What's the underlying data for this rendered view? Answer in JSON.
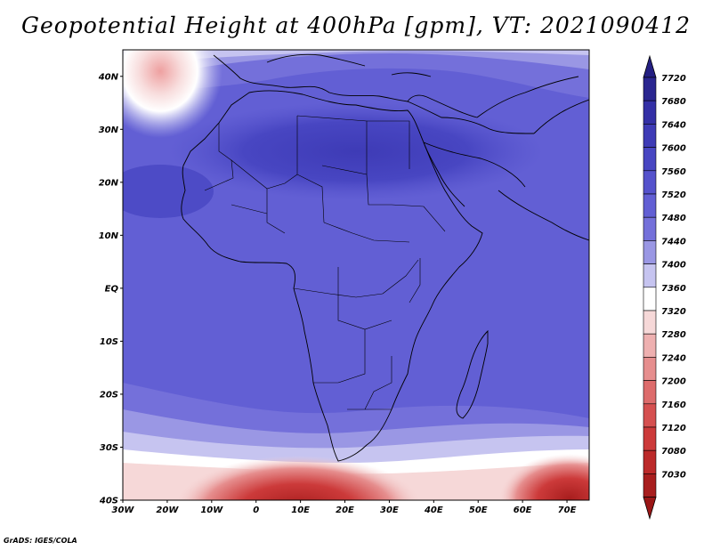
{
  "title": "Geopotential Height at 400hPa [gpm], VT: 2021090412",
  "map": {
    "extent": {
      "lon_min": -30,
      "lon_max": 75,
      "lat_min": -40,
      "lat_max": 45
    },
    "lat_ticks": [
      {
        "value": 40,
        "label": "40N"
      },
      {
        "value": 30,
        "label": "30N"
      },
      {
        "value": 20,
        "label": "20N"
      },
      {
        "value": 10,
        "label": "10N"
      },
      {
        "value": 0,
        "label": "EQ"
      },
      {
        "value": -10,
        "label": "10S"
      },
      {
        "value": -20,
        "label": "20S"
      },
      {
        "value": -30,
        "label": "30S"
      },
      {
        "value": -40,
        "label": "40S"
      }
    ],
    "lon_ticks": [
      {
        "value": -30,
        "label": "30W"
      },
      {
        "value": -20,
        "label": "20W"
      },
      {
        "value": -10,
        "label": "10W"
      },
      {
        "value": 0,
        "label": "0"
      },
      {
        "value": 10,
        "label": "10E"
      },
      {
        "value": 20,
        "label": "20E"
      },
      {
        "value": 30,
        "label": "30E"
      },
      {
        "value": 40,
        "label": "40E"
      },
      {
        "value": 50,
        "label": "50E"
      },
      {
        "value": 60,
        "label": "60E"
      },
      {
        "value": 70,
        "label": "70E"
      }
    ]
  },
  "colorbar": {
    "levels": [
      {
        "label": "7720",
        "color": "#2a2690"
      },
      {
        "label": "7680",
        "color": "#3430a6"
      },
      {
        "label": "7640",
        "color": "#3e3bb6"
      },
      {
        "label": "7600",
        "color": "#4846c2"
      },
      {
        "label": "7560",
        "color": "#5552cc"
      },
      {
        "label": "7520",
        "color": "#625fd4"
      },
      {
        "label": "7480",
        "color": "#7470da"
      },
      {
        "label": "7440",
        "color": "#9a97e4"
      },
      {
        "label": "7400",
        "color": "#c6c4f0"
      },
      {
        "label": "7360",
        "color": "#ffffff"
      },
      {
        "label": "7320",
        "color": "#f6d8d8"
      },
      {
        "label": "7280",
        "color": "#eeb0b0"
      },
      {
        "label": "7240",
        "color": "#e68e8e"
      },
      {
        "label": "7200",
        "color": "#dd6c6c"
      },
      {
        "label": "7160",
        "color": "#d55050"
      },
      {
        "label": "7120",
        "color": "#cc3a3a"
      },
      {
        "label": "7080",
        "color": "#bc2a2a"
      },
      {
        "label": "7030",
        "color": "#a81e1e"
      }
    ],
    "top_color": "#241f82",
    "bottom_color": "#9a1616"
  },
  "credit": "GrADS: IGES/COLA"
}
